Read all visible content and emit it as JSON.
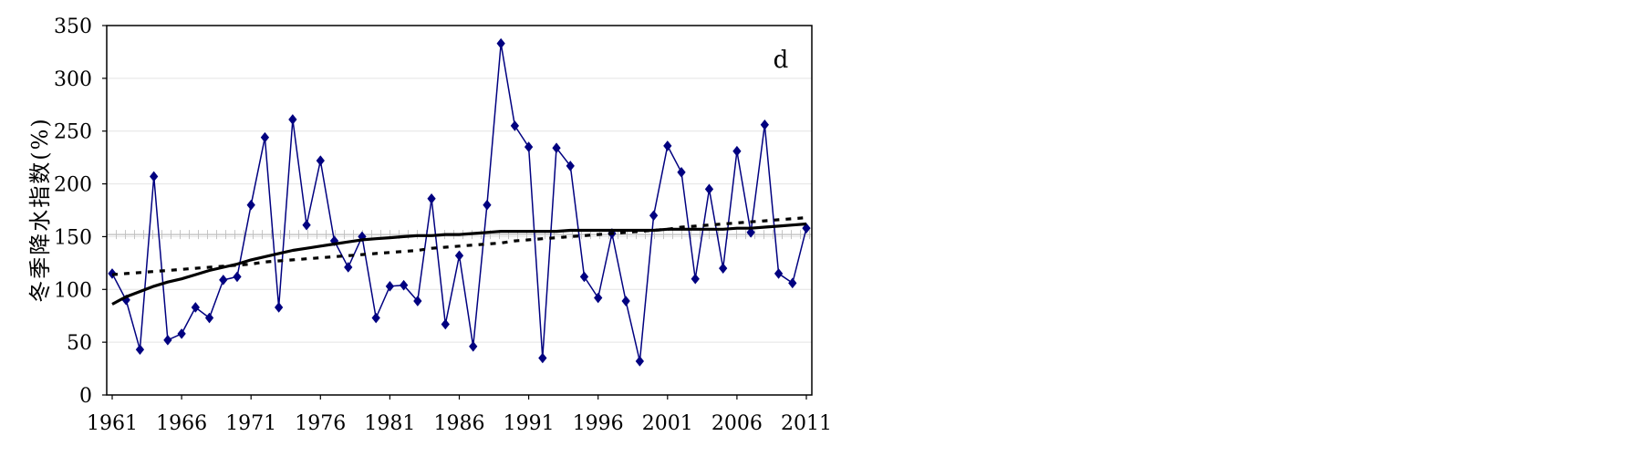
{
  "chart_data": {
    "type": "line",
    "panel_label": "d",
    "title": "",
    "xlabel": "",
    "ylabel": "冬季降水指数(%)",
    "xlim": [
      1961,
      2011
    ],
    "ylim": [
      0,
      350
    ],
    "x_ticks": [
      1961,
      1966,
      1971,
      1976,
      1981,
      1986,
      1991,
      1996,
      2001,
      2006,
      2011
    ],
    "y_ticks": [
      0,
      50,
      100,
      150,
      200,
      250,
      300,
      350
    ],
    "grid": "horizontal",
    "legend": "none",
    "reference_line": {
      "y": 152,
      "style": "gray-hatched"
    },
    "x": [
      1961,
      1962,
      1963,
      1964,
      1965,
      1966,
      1967,
      1968,
      1969,
      1970,
      1971,
      1972,
      1973,
      1974,
      1975,
      1976,
      1977,
      1978,
      1979,
      1980,
      1981,
      1982,
      1983,
      1984,
      1985,
      1986,
      1987,
      1988,
      1989,
      1990,
      1991,
      1992,
      1993,
      1994,
      1995,
      1996,
      1997,
      1998,
      1999,
      2000,
      2001,
      2002,
      2003,
      2004,
      2005,
      2006,
      2007,
      2008,
      2009,
      2010,
      2011
    ],
    "series": [
      {
        "style": "diamond-line",
        "color": "#000080",
        "values": [
          115,
          90,
          43,
          207,
          52,
          58,
          83,
          73,
          109,
          112,
          180,
          244,
          83,
          261,
          161,
          222,
          146,
          121,
          150,
          73,
          103,
          104,
          89,
          186,
          67,
          132,
          46,
          180,
          333,
          255,
          235,
          35,
          234,
          217,
          112,
          92,
          153,
          89,
          32,
          170,
          236,
          211,
          110,
          195,
          120,
          231,
          154,
          256,
          115,
          106,
          158
        ]
      },
      {
        "style": "solid",
        "color": "#000000",
        "values": [
          86,
          93,
          98,
          103,
          107,
          110,
          114,
          118,
          121,
          124,
          128,
          131,
          134,
          137,
          139,
          141,
          143,
          145,
          147,
          148,
          149,
          150,
          151,
          151,
          152,
          152,
          153,
          154,
          155,
          155,
          155,
          155,
          155,
          156,
          156,
          156,
          156,
          156,
          156,
          156,
          157,
          157,
          157,
          157,
          157,
          158,
          158,
          159,
          160,
          161,
          162
        ]
      },
      {
        "style": "dashed",
        "color": "#000000",
        "values": [
          114,
          115,
          116,
          117,
          118,
          119,
          120,
          121,
          122,
          123,
          124,
          126,
          127,
          128,
          129,
          130,
          131,
          132,
          133,
          134,
          135,
          136,
          137,
          139,
          140,
          141,
          142,
          143,
          144,
          146,
          147,
          148,
          149,
          150,
          151,
          152,
          153,
          154,
          155,
          156,
          157,
          159,
          160,
          161,
          162,
          163,
          164,
          165,
          166,
          167,
          168
        ]
      }
    ]
  }
}
